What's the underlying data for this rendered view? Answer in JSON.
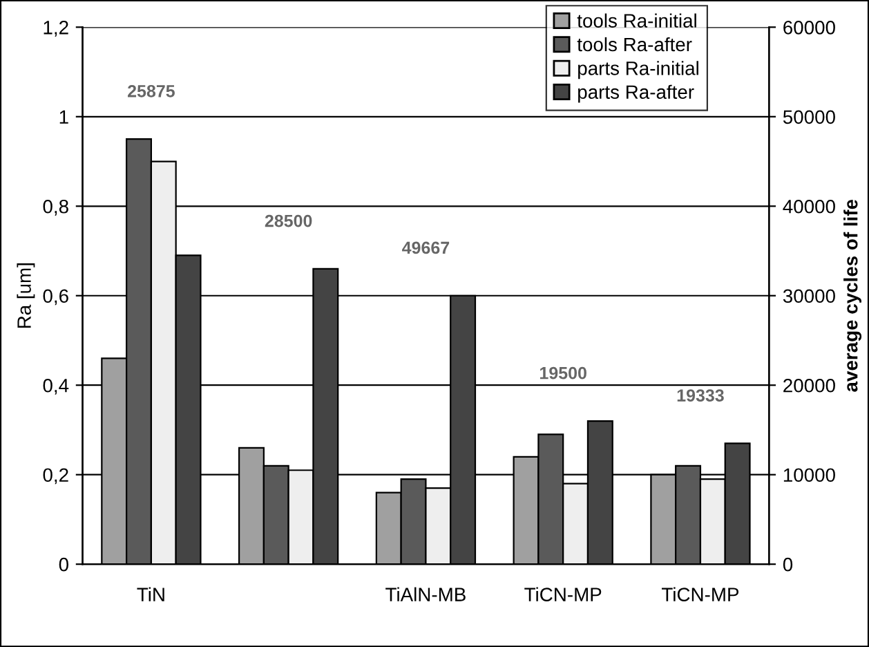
{
  "chart_data": {
    "type": "bar",
    "ylabel": "Ra [um]",
    "y2label": "average cycles of life",
    "categories": [
      "TiN",
      null,
      "TiAlN-MB",
      "TiCN-MP",
      "TiCN-MP"
    ],
    "series": [
      {
        "name": "tools Ra-initial",
        "color": "#a0a0a0",
        "values": [
          0.46,
          0.26,
          0.16,
          0.24,
          0.2
        ]
      },
      {
        "name": "tools Ra-after",
        "color": "#5a5a5a",
        "values": [
          0.95,
          0.22,
          0.19,
          0.29,
          0.22
        ]
      },
      {
        "name": "parts Ra-initial",
        "color": "#eeeeee",
        "values": [
          0.9,
          0.21,
          0.17,
          0.18,
          0.19
        ]
      },
      {
        "name": "parts Ra-after",
        "color": "#444444",
        "values": [
          0.69,
          0.66,
          0.6,
          0.32,
          0.27
        ]
      }
    ],
    "ylim": [
      0,
      1.2
    ],
    "yticks": [
      0,
      {
        "value": 0.2,
        "label": "0,2"
      },
      {
        "value": 0.4,
        "label": "0,4"
      },
      {
        "value": 0.6,
        "label": "0,6"
      },
      {
        "value": 0.8,
        "label": "0,8"
      },
      1,
      {
        "value": 1.2,
        "label": "1,2"
      }
    ],
    "y2lim": [
      0,
      60000
    ],
    "y2ticks": [
      0,
      10000,
      20000,
      30000,
      40000,
      50000,
      60000
    ],
    "annotations": [
      "25875",
      "28500",
      "49667",
      "19500",
      "19333"
    ],
    "grid": "y",
    "legend": "top right"
  }
}
